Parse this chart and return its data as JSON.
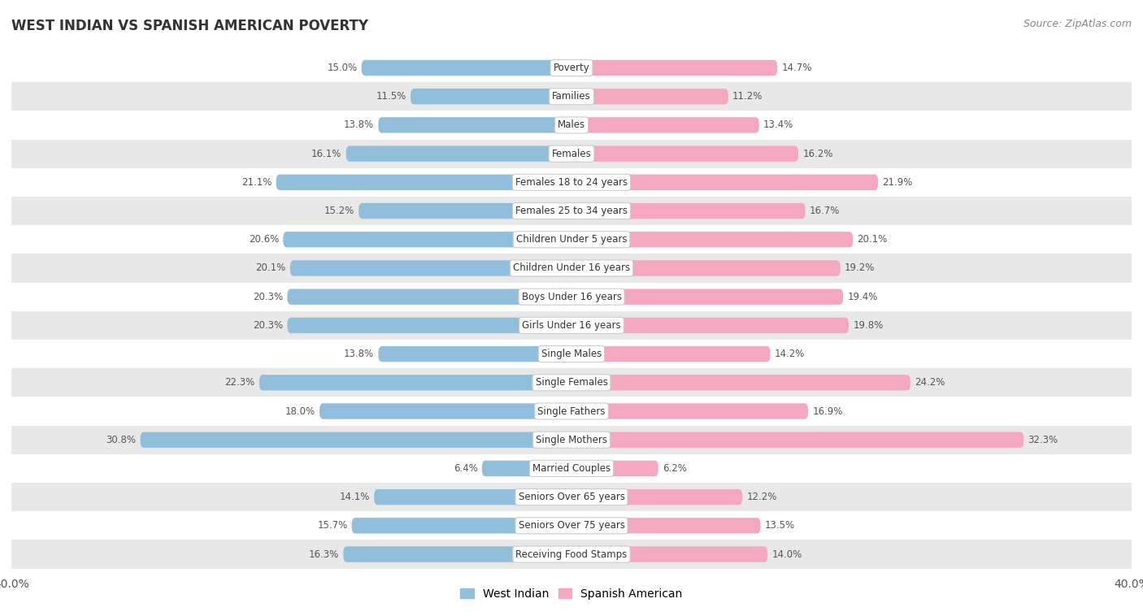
{
  "title": "WEST INDIAN VS SPANISH AMERICAN POVERTY",
  "source": "Source: ZipAtlas.com",
  "categories": [
    "Poverty",
    "Families",
    "Males",
    "Females",
    "Females 18 to 24 years",
    "Females 25 to 34 years",
    "Children Under 5 years",
    "Children Under 16 years",
    "Boys Under 16 years",
    "Girls Under 16 years",
    "Single Males",
    "Single Females",
    "Single Fathers",
    "Single Mothers",
    "Married Couples",
    "Seniors Over 65 years",
    "Seniors Over 75 years",
    "Receiving Food Stamps"
  ],
  "west_indian": [
    15.0,
    11.5,
    13.8,
    16.1,
    21.1,
    15.2,
    20.6,
    20.1,
    20.3,
    20.3,
    13.8,
    22.3,
    18.0,
    30.8,
    6.4,
    14.1,
    15.7,
    16.3
  ],
  "spanish_american": [
    14.7,
    11.2,
    13.4,
    16.2,
    21.9,
    16.7,
    20.1,
    19.2,
    19.4,
    19.8,
    14.2,
    24.2,
    16.9,
    32.3,
    6.2,
    12.2,
    13.5,
    14.0
  ],
  "west_indian_color": "#91bfdb",
  "spanish_american_color": "#f4a8c0",
  "row_color_light": "#ffffff",
  "row_color_dark": "#e8e8e8",
  "max_val": 40.0,
  "bar_height": 0.55,
  "legend_labels": [
    "West Indian",
    "Spanish American"
  ]
}
